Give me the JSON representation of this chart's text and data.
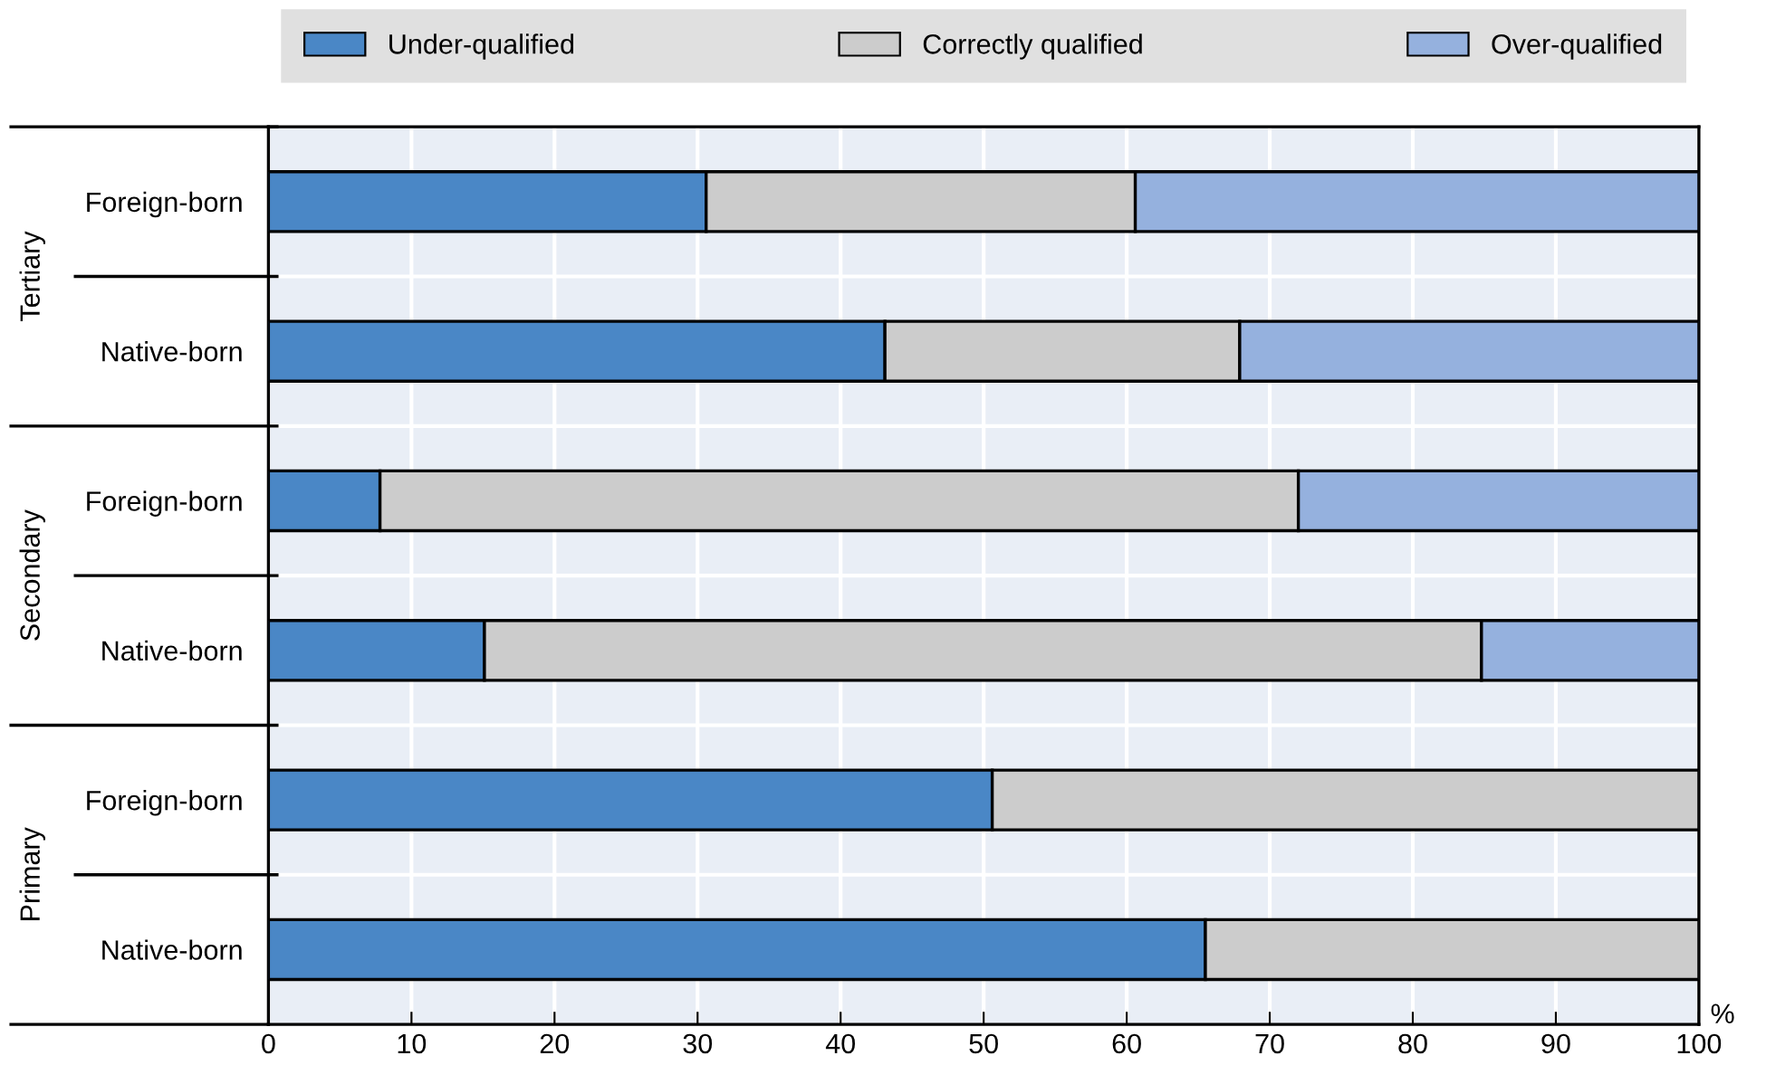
{
  "chart_data": {
    "type": "bar",
    "orientation": "horizontal",
    "stacked": true,
    "categories": [
      "Foreign-born",
      "Native-born",
      "Foreign-born",
      "Native-born",
      "Foreign-born",
      "Native-born"
    ],
    "series": [
      {
        "name": "Under-qualified",
        "color": "#4a87c6",
        "values": [
          30.6,
          43.1,
          7.8,
          15.1,
          50.6,
          65.5
        ]
      },
      {
        "name": "Correctly qualified",
        "color": "#cccccc",
        "values": [
          30.0,
          24.8,
          64.2,
          69.7,
          49.4,
          34.5
        ]
      },
      {
        "name": "Over-qualified",
        "color": "#95b1de",
        "values": [
          39.4,
          32.1,
          28.0,
          15.2,
          null,
          null
        ]
      }
    ],
    "xlim": [
      0,
      100
    ],
    "xticks": [
      0,
      10,
      20,
      30,
      40,
      50,
      60,
      70,
      80,
      90,
      100
    ],
    "xlabel": "%",
    "annotations": [
      "Tertiary",
      "Secondary",
      "Primary"
    ],
    "grid": true,
    "legend": "top"
  }
}
